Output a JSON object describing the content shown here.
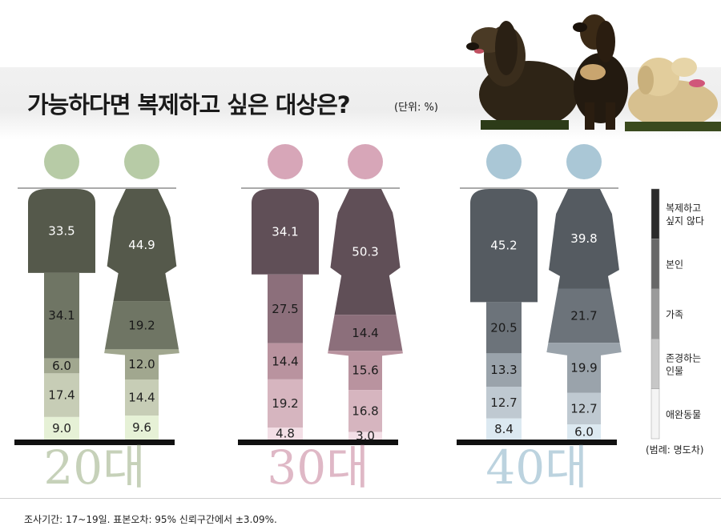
{
  "title": "가능하다면 복제하고 싶은 대상은?",
  "unit": "(단위: %)",
  "legend_caption": "(범례: 명도차)",
  "footer": "조사기간: 17~19일. 표본오차: 95% 신뢰구간에서 ±3.09%.",
  "colors": {
    "20s": [
      "#55594b",
      "#6f7564",
      "#a1a78f",
      "#c7cdb6",
      "#e6f1d6"
    ],
    "30s": [
      "#604f57",
      "#8c6f7b",
      "#b9939f",
      "#d6b5bf",
      "#f3dfe6"
    ],
    "40s": [
      "#555b61",
      "#6c737a",
      "#9aa3ab",
      "#bfc9d1",
      "#dce9f1"
    ],
    "heads": {
      "20s": "#b7cba6",
      "30s": "#d7a6b8",
      "40s": "#aac7d6"
    },
    "age_labels": {
      "20s": "#c6d1b9",
      "30s": "#dfb8c6",
      "40s": "#bcd3df"
    },
    "legend": [
      "#2b2b2b",
      "#686868",
      "#9a9a9a",
      "#c7c7c7",
      "#f4f4f4"
    ]
  },
  "chart_data": {
    "type": "bar",
    "title": "가능하다면 복제하고 싶은 대상은?",
    "unit": "%",
    "categories": [
      "복제하고 싶지 않다",
      "본인",
      "가족",
      "존경하는 인물",
      "애완동물"
    ],
    "legend": [
      "복제하고\n싶지 않다",
      "본인",
      "가족",
      "존경하는\n인물",
      "애완동물"
    ],
    "groups": [
      {
        "age": "20대",
        "figures": [
          {
            "gender": "male",
            "values": [
              "33.5",
              "34.1",
              "6.0",
              "17.4",
              "9.0"
            ]
          },
          {
            "gender": "female",
            "values": [
              "44.9",
              "19.2",
              "12.0",
              "14.4",
              "9.6"
            ]
          }
        ]
      },
      {
        "age": "30대",
        "figures": [
          {
            "gender": "male",
            "values": [
              "34.1",
              "27.5",
              "14.4",
              "19.2",
              "4.8"
            ]
          },
          {
            "gender": "female",
            "values": [
              "50.3",
              "14.4",
              "15.6",
              "16.8",
              "3.0"
            ]
          }
        ]
      },
      {
        "age": "40대",
        "figures": [
          {
            "gender": "male",
            "values": [
              "45.2",
              "20.5",
              "13.3",
              "12.7",
              "8.4"
            ]
          },
          {
            "gender": "female",
            "values": [
              "39.8",
              "21.7",
              "19.9",
              "12.7",
              "6.0"
            ]
          }
        ]
      }
    ]
  }
}
